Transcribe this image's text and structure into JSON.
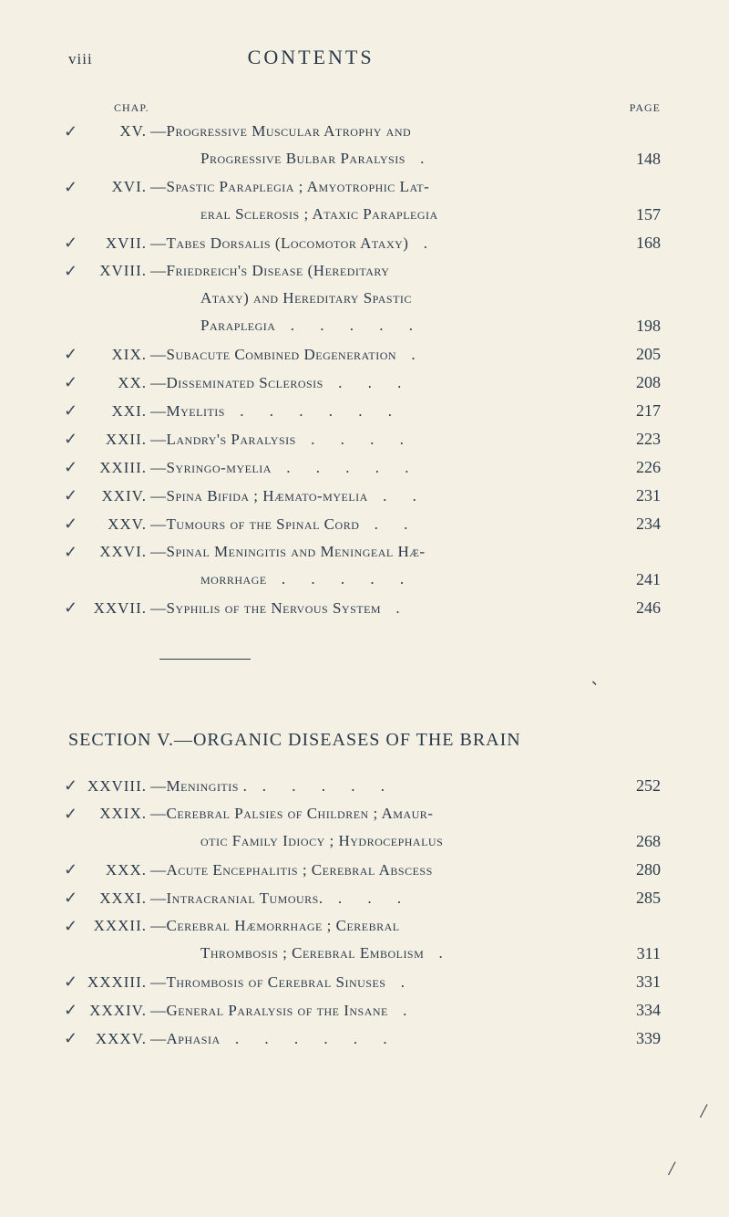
{
  "header": {
    "page_num": "viii",
    "title": "CONTENTS"
  },
  "column_headers": {
    "left": "CHAP.",
    "right": "PAGE"
  },
  "entries": [
    {
      "check": "✓",
      "roman": "XV.",
      "desc": "—Progressive Muscular Atrophy and",
      "page": ""
    },
    {
      "continuation": true,
      "desc": "Progressive Bulbar Paralysis",
      "dots": "  .",
      "page": "148"
    },
    {
      "check": "✓",
      "roman": "XVI.",
      "desc": "—Spastic Paraplegia ; Amyotrophic Lat-",
      "page": ""
    },
    {
      "continuation": true,
      "desc": "eral Sclerosis ; Ataxic Paraplegia",
      "page": "157"
    },
    {
      "check": "✓",
      "roman": "XVII.",
      "desc": "—Tabes Dorsalis (Locomotor Ataxy)",
      "dots": "  .",
      "page": "168"
    },
    {
      "check": "✓",
      "roman": "XVIII.",
      "desc": "—Friedreich's Disease (Hereditary",
      "page": ""
    },
    {
      "continuation": true,
      "desc": "Ataxy) and Hereditary Spastic",
      "page": ""
    },
    {
      "continuation": true,
      "desc": "Paraplegia",
      "dots": "  .  .  .  .  .",
      "page": "198"
    },
    {
      "check": "✓",
      "roman": "XIX.",
      "desc": "—Subacute Combined Degeneration",
      "dots": "  .",
      "page": "205"
    },
    {
      "check": "✓",
      "roman": "XX.",
      "desc": "—Disseminated Sclerosis",
      "dots": "  .  .  .",
      "page": "208"
    },
    {
      "check": "✓",
      "roman": "XXI.",
      "desc": "—Myelitis",
      "dots": "  .  .  .  .  .  .",
      "page": "217"
    },
    {
      "check": "✓",
      "roman": "XXII.",
      "desc": "—Landry's Paralysis",
      "dots": "  .  .  .  .",
      "page": "223"
    },
    {
      "check": "✓",
      "roman": "XXIII.",
      "desc": "—Syringo-myelia",
      "dots": "  .  .  .  .  .",
      "page": "226"
    },
    {
      "check": "✓",
      "roman": "XXIV.",
      "desc": "—Spina Bifida ; Hæmato-myelia",
      "dots": "  .  .",
      "page": "231"
    },
    {
      "check": "✓",
      "roman": "XXV.",
      "desc": "—Tumours of the Spinal Cord",
      "dots": "  .  .",
      "page": "234"
    },
    {
      "check": "✓",
      "roman": "XXVI.",
      "desc": "—Spinal Meningitis and Meningeal Hæ-",
      "page": ""
    },
    {
      "continuation": true,
      "desc": "morrhage",
      "dots": "  .  .  .  .  .",
      "page": "241"
    },
    {
      "check": "✓",
      "roman": "XXVII.",
      "desc": "—Syphilis of the Nervous System",
      "dots": "  .",
      "page": "246"
    }
  ],
  "section_title": "SECTION V.—ORGANIC DISEASES OF THE BRAIN",
  "section_entries": [
    {
      "check": "✓",
      "roman": "XXVIII.",
      "desc": "—Meningitis .",
      "dots": "  .  .  .  .  .",
      "page": "252"
    },
    {
      "check": "✓",
      "roman": "XXIX.",
      "desc": "—Cerebral Palsies of Children ; Amaur-",
      "page": ""
    },
    {
      "continuation": true,
      "desc": "otic Family Idiocy ; Hydrocephalus",
      "page": "268"
    },
    {
      "check": "✓",
      "roman": "XXX.",
      "desc": "—Acute Encephalitis ; Cerebral Abscess",
      "page": "280"
    },
    {
      "check": "✓",
      "roman": "XXXI.",
      "desc": "—Intracranial Tumours.",
      "dots": "  .  .  .",
      "page": "285"
    },
    {
      "check": "✓",
      "roman": "XXXII.",
      "desc": "—Cerebral Hæmorrhage ; Cerebral",
      "page": ""
    },
    {
      "continuation": true,
      "desc": "Thrombosis ; Cerebral Embolism",
      "dots": "  .",
      "page": "311"
    },
    {
      "check": "✓",
      "roman": "XXXIII.",
      "desc": "—Thrombosis of Cerebral Sinuses",
      "dots": "  .",
      "page": "331"
    },
    {
      "check": "✓",
      "roman": "XXXIV.",
      "desc": "—General Paralysis of the Insane",
      "dots": "  .",
      "page": "334"
    },
    {
      "check": "✓",
      "roman": "XXXV.",
      "desc": "—Aphasia",
      "dots": "  .  .  .  .  .  .",
      "page": "339"
    }
  ],
  "handwritten_marks": {
    "right": "/",
    "bottom": "/"
  }
}
